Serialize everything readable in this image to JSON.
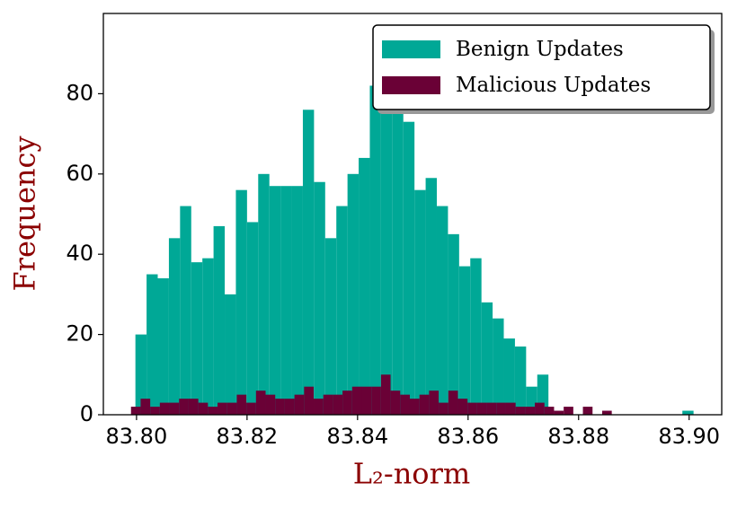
{
  "chart_data": {
    "type": "histogram",
    "xlabel": "L₂-norm",
    "ylabel": "Frequency",
    "xlim": [
      83.794,
      83.9059
    ],
    "ylim": [
      0,
      100
    ],
    "xticks": [
      {
        "value": 83.8,
        "label": "83.80"
      },
      {
        "value": 83.82,
        "label": "83.82"
      },
      {
        "value": 83.84,
        "label": "83.84"
      },
      {
        "value": 83.86,
        "label": "83.86"
      },
      {
        "value": 83.88,
        "label": "83.88"
      },
      {
        "value": 83.9,
        "label": "83.90"
      }
    ],
    "yticks": [
      0,
      20,
      40,
      60,
      80
    ],
    "legend": "upper right",
    "series": [
      {
        "name": "Benign Updates",
        "color": "#00a896",
        "bins": [
          83.7998,
          83.80182,
          83.80384,
          83.80586,
          83.80788,
          83.8099,
          83.81192,
          83.81394,
          83.81596,
          83.81798,
          83.82,
          83.82202,
          83.82404,
          83.82606,
          83.82808,
          83.8301,
          83.83212,
          83.83414,
          83.83616,
          83.83818,
          83.8402,
          83.84222,
          83.84424,
          83.84626,
          83.84828,
          83.8503,
          83.85232,
          83.85434,
          83.85636,
          83.85838,
          83.8604,
          83.86242,
          83.86444,
          83.86646,
          83.86848,
          83.8705,
          83.87252,
          83.87454,
          83.87656,
          83.87858,
          83.8806,
          83.88262,
          83.88464,
          83.88666,
          83.88868,
          83.8907,
          83.89272,
          83.89474,
          83.89676,
          83.89878,
          83.9008
        ],
        "values": [
          20,
          35,
          34,
          44,
          52,
          38,
          39,
          47,
          30,
          56,
          48,
          60,
          57,
          57,
          57,
          76,
          58,
          44,
          52,
          60,
          64,
          82,
          80,
          78,
          73,
          56,
          59,
          52,
          45,
          37,
          39,
          28,
          24,
          19,
          17,
          7,
          10,
          0,
          0,
          0,
          0,
          0,
          0,
          0,
          0,
          0,
          0,
          0,
          0,
          1
        ]
      },
      {
        "name": "Malicious Updates",
        "color": "#6a0136",
        "bins": [
          83.799,
          83.80074,
          83.80248,
          83.80422,
          83.80596,
          83.8077,
          83.80944,
          83.81118,
          83.81292,
          83.81466,
          83.8164,
          83.81814,
          83.81988,
          83.82162,
          83.82336,
          83.8251,
          83.82684,
          83.82858,
          83.83032,
          83.83206,
          83.8338,
          83.83554,
          83.83728,
          83.83902,
          83.84076,
          83.8425,
          83.84424,
          83.84598,
          83.84772,
          83.84946,
          83.8512,
          83.85294,
          83.85468,
          83.85642,
          83.85816,
          83.8599,
          83.86164,
          83.86338,
          83.86512,
          83.86686,
          83.8686,
          83.87034,
          83.87208,
          83.87382,
          83.87556,
          83.8773,
          83.87904,
          83.88078,
          83.88252,
          83.88426,
          83.886
        ],
        "values": [
          2,
          4,
          2,
          3,
          3,
          4,
          4,
          3,
          2,
          3,
          3,
          5,
          3,
          6,
          5,
          4,
          4,
          5,
          7,
          4,
          5,
          5,
          6,
          7,
          7,
          7,
          10,
          6,
          5,
          4,
          5,
          6,
          3,
          6,
          4,
          3,
          3,
          3,
          3,
          3,
          2,
          2,
          3,
          2,
          1,
          2,
          0,
          2,
          0,
          1
        ]
      }
    ]
  }
}
